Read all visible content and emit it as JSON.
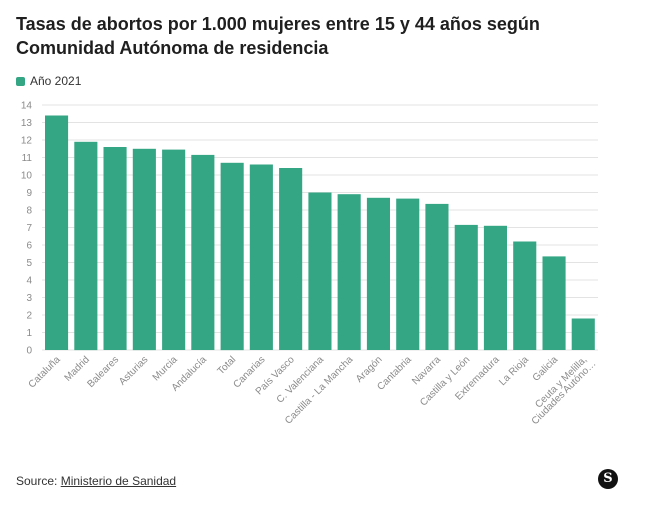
{
  "title": "Tasas de abortos por 1.000 mujeres entre 15 y 44 años según Comunidad Autónoma de residencia",
  "source_label": "Source:",
  "source_link": "Ministerio de Sanidad",
  "logo_letter": "S",
  "colors": {
    "bar": "#34a683",
    "grid": "#e3e3e3",
    "tick": "#8a8a8a"
  },
  "chart_data": {
    "type": "bar",
    "title": "Tasas de abortos por 1.000 mujeres entre 15 y 44 años según Comunidad Autónoma de residencia",
    "categories": [
      "Cataluña",
      "Madrid",
      "Baleares",
      "Asturias",
      "Murcia",
      "Andalucía",
      "Total",
      "Canarias",
      "País Vasco",
      "C. Valenciana",
      "Castilla - La Mancha",
      "Aragón",
      "Cantabria",
      "Navarra",
      "Castilla y León",
      "Extremadura",
      "La Rioja",
      "Galicia",
      "Ceuta y Melilla, Ciudades Autóno…"
    ],
    "series": [
      {
        "name": "Año 2021",
        "values": [
          13.4,
          11.9,
          11.6,
          11.5,
          11.45,
          11.15,
          10.7,
          10.6,
          10.4,
          9.0,
          8.9,
          8.7,
          8.65,
          8.35,
          7.15,
          7.1,
          6.2,
          5.35,
          1.8
        ]
      }
    ],
    "yticks": [
      0,
      1,
      2,
      3,
      4,
      5,
      6,
      7,
      8,
      9,
      10,
      11,
      12,
      13,
      14
    ],
    "ylim": [
      0,
      14
    ],
    "xlabel": "",
    "ylabel": "",
    "grid": true,
    "legend_position": "top-left"
  }
}
